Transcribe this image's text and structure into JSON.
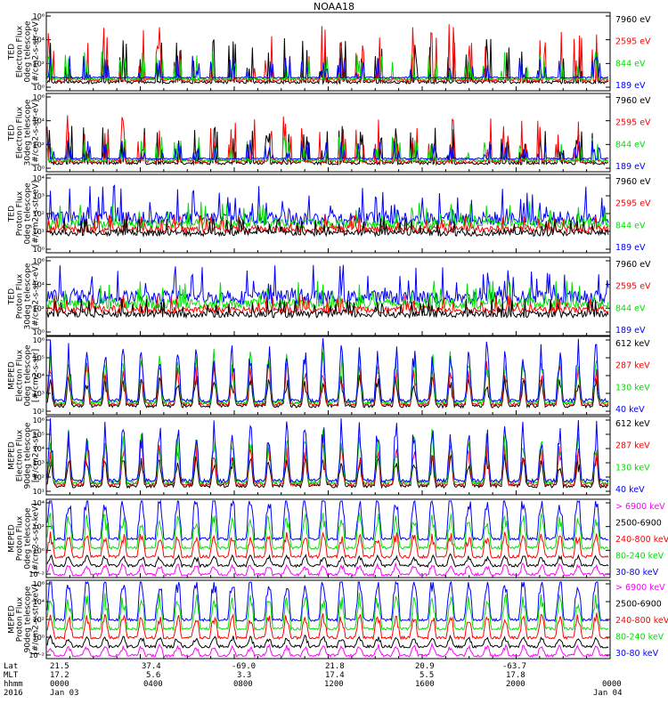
{
  "title": "NOAA18",
  "colors": {
    "black": "#000000",
    "red": "#ff0000",
    "green": "#00e000",
    "blue": "#0000ff",
    "magenta": "#ff00ff"
  },
  "panels": [
    {
      "name": "ted-electron-0deg",
      "ylabel": [
        "TED",
        "Electron Flux",
        "0deg telescope",
        "[#/cm2-s-str-eV]"
      ],
      "ticks": [
        "10⁶",
        "10⁴",
        "10²",
        "10⁰"
      ],
      "legend": [
        {
          "text": "7960 eV",
          "color": "#000000"
        },
        {
          "text": "2595 eV",
          "color": "#ff0000"
        },
        {
          "text": "844 eV",
          "color": "#00e000"
        },
        {
          "text": "189 eV",
          "color": "#0000ff"
        }
      ]
    },
    {
      "name": "ted-electron-30deg",
      "ylabel": [
        "TED",
        "Electron Flux",
        "30deg telescope",
        "[#/cm2-s-str-eV]"
      ],
      "ticks": [
        "10⁶",
        "10⁴",
        "10²",
        "10⁰"
      ],
      "legend": [
        {
          "text": "7960 eV",
          "color": "#000000"
        },
        {
          "text": "2595 eV",
          "color": "#ff0000"
        },
        {
          "text": "844 eV",
          "color": "#00e000"
        },
        {
          "text": "189 eV",
          "color": "#0000ff"
        }
      ]
    },
    {
      "name": "ted-proton-0deg",
      "ylabel": [
        "TED",
        "Proton Flux",
        "0deg telescope",
        "[#/cm2-s-str-eV]"
      ],
      "ticks": [
        "10⁴",
        "10³",
        "10²",
        "10¹",
        "10⁰"
      ],
      "legend": [
        {
          "text": "7960 eV",
          "color": "#000000"
        },
        {
          "text": "2595 eV",
          "color": "#ff0000"
        },
        {
          "text": "844 eV",
          "color": "#00e000"
        },
        {
          "text": "189 eV",
          "color": "#0000ff"
        }
      ]
    },
    {
      "name": "ted-proton-30deg",
      "ylabel": [
        "TED",
        "Proton Flux",
        "30deg telescope",
        "[#/cm2-s-str-eV]"
      ],
      "ticks": [
        "10⁶",
        "10⁴",
        "10²",
        "10⁰"
      ],
      "legend": [
        {
          "text": "7960 eV",
          "color": "#000000"
        },
        {
          "text": "2595 eV",
          "color": "#ff0000"
        },
        {
          "text": "844 eV",
          "color": "#00e000"
        },
        {
          "text": "189 eV",
          "color": "#0000ff"
        }
      ]
    },
    {
      "name": "meped-electron-0deg",
      "ylabel": [
        "MEPED",
        "Electron Flux",
        "0deg telescope",
        "[#/cm2-s-str]"
      ],
      "ticks": [
        "10⁶",
        "10⁵",
        "10⁴",
        "10³",
        "10²"
      ],
      "legend": [
        {
          "text": "612 keV",
          "color": "#000000"
        },
        {
          "text": "287 keV",
          "color": "#ff0000"
        },
        {
          "text": "130 keV",
          "color": "#00e000"
        },
        {
          "text": "40 keV",
          "color": "#0000ff"
        }
      ]
    },
    {
      "name": "meped-electron-90deg",
      "ylabel": [
        "MEPED",
        "Electron Flux",
        "90deg telescope",
        "[#/cm2-s-str]"
      ],
      "ticks": [
        "10⁶",
        "10⁵",
        "10⁴",
        "10³",
        "10²",
        "10¹"
      ],
      "legend": [
        {
          "text": "612 keV",
          "color": "#000000"
        },
        {
          "text": "287 keV",
          "color": "#ff0000"
        },
        {
          "text": "130 keV",
          "color": "#00e000"
        },
        {
          "text": "40 keV",
          "color": "#0000ff"
        }
      ]
    },
    {
      "name": "meped-proton-0deg",
      "ylabel": [
        "MEPED",
        "Proton Flux",
        "0deg telescope",
        "[#/cm2-s-str-keV]"
      ],
      "ticks": [
        "10⁴",
        "10²",
        "10⁰",
        "10⁻²"
      ],
      "legend": [
        {
          "text": "> 6900 keV",
          "color": "#ff00ff"
        },
        {
          "text": "2500-6900",
          "color": "#000000"
        },
        {
          "text": "240-800 keV",
          "color": "#ff0000"
        },
        {
          "text": "80-240 keV",
          "color": "#00e000"
        },
        {
          "text": "30-80 keV",
          "color": "#0000ff"
        }
      ]
    },
    {
      "name": "meped-proton-90deg",
      "ylabel": [
        "MEPED",
        "Proton Flux",
        "90deg telescope",
        "[#/cm2-s-str-keV]"
      ],
      "ticks": [
        "10⁶",
        "10⁴",
        "10²",
        "10⁰",
        "10⁻²"
      ],
      "legend": [
        {
          "text": "> 6900 keV",
          "color": "#ff00ff"
        },
        {
          "text": "2500-6900",
          "color": "#000000"
        },
        {
          "text": "240-800 keV",
          "color": "#ff0000"
        },
        {
          "text": "80-240 keV",
          "color": "#00e000"
        },
        {
          "text": "30-80 keV",
          "color": "#0000ff"
        }
      ]
    }
  ],
  "xaxis": {
    "row_labels": [
      "Lat",
      "MLT",
      "hhmm",
      "2016"
    ],
    "columns": [
      {
        "lat": "21.5",
        "mlt": "17.2",
        "hhmm": "0000",
        "date": "Jan 03"
      },
      {
        "lat": "37.4",
        "mlt": "5.6",
        "hhmm": "0400",
        "date": ""
      },
      {
        "lat": "-69.0",
        "mlt": "3.3",
        "hhmm": "0800",
        "date": ""
      },
      {
        "lat": "21.8",
        "mlt": "17.4",
        "hhmm": "1200",
        "date": ""
      },
      {
        "lat": "20.9",
        "mlt": "5.5",
        "hhmm": "1600",
        "date": ""
      },
      {
        "lat": "-63.7",
        "mlt": "17.8",
        "hhmm": "2000",
        "date": ""
      },
      {
        "lat": "",
        "mlt": "",
        "hhmm": "0000",
        "date": "Jan 04"
      }
    ]
  },
  "chart_data": {
    "type": "line",
    "title": "NOAA18",
    "x_range": [
      "2016-01-03 00:00",
      "2016-01-04 00:00"
    ],
    "y_scale": "log",
    "note_series": "Stacked 8-panel time series of particle flux for NOAA18 over 24 hours; per-panel series are listed in panels[].legend. Individual sample values are not labeled in the figure; traces show orbital-period spikes of several decades.",
    "series_per_panel": [
      [
        "7960 eV",
        "2595 eV",
        "844 eV",
        "189 eV"
      ],
      [
        "7960 eV",
        "2595 eV",
        "844 eV",
        "189 eV"
      ],
      [
        "7960 eV",
        "2595 eV",
        "844 eV",
        "189 eV"
      ],
      [
        "7960 eV",
        "2595 eV",
        "844 eV",
        "189 eV"
      ],
      [
        "612 keV",
        "287 keV",
        "130 keV",
        "40 keV"
      ],
      [
        "612 keV",
        "287 keV",
        "130 keV",
        "40 keV"
      ],
      [
        "> 6900 keV",
        "2500-6900",
        "240-800 keV",
        "80-240 keV",
        "30-80 keV"
      ],
      [
        "> 6900 keV",
        "2500-6900",
        "240-800 keV",
        "80-240 keV",
        "30-80 keV"
      ]
    ]
  }
}
